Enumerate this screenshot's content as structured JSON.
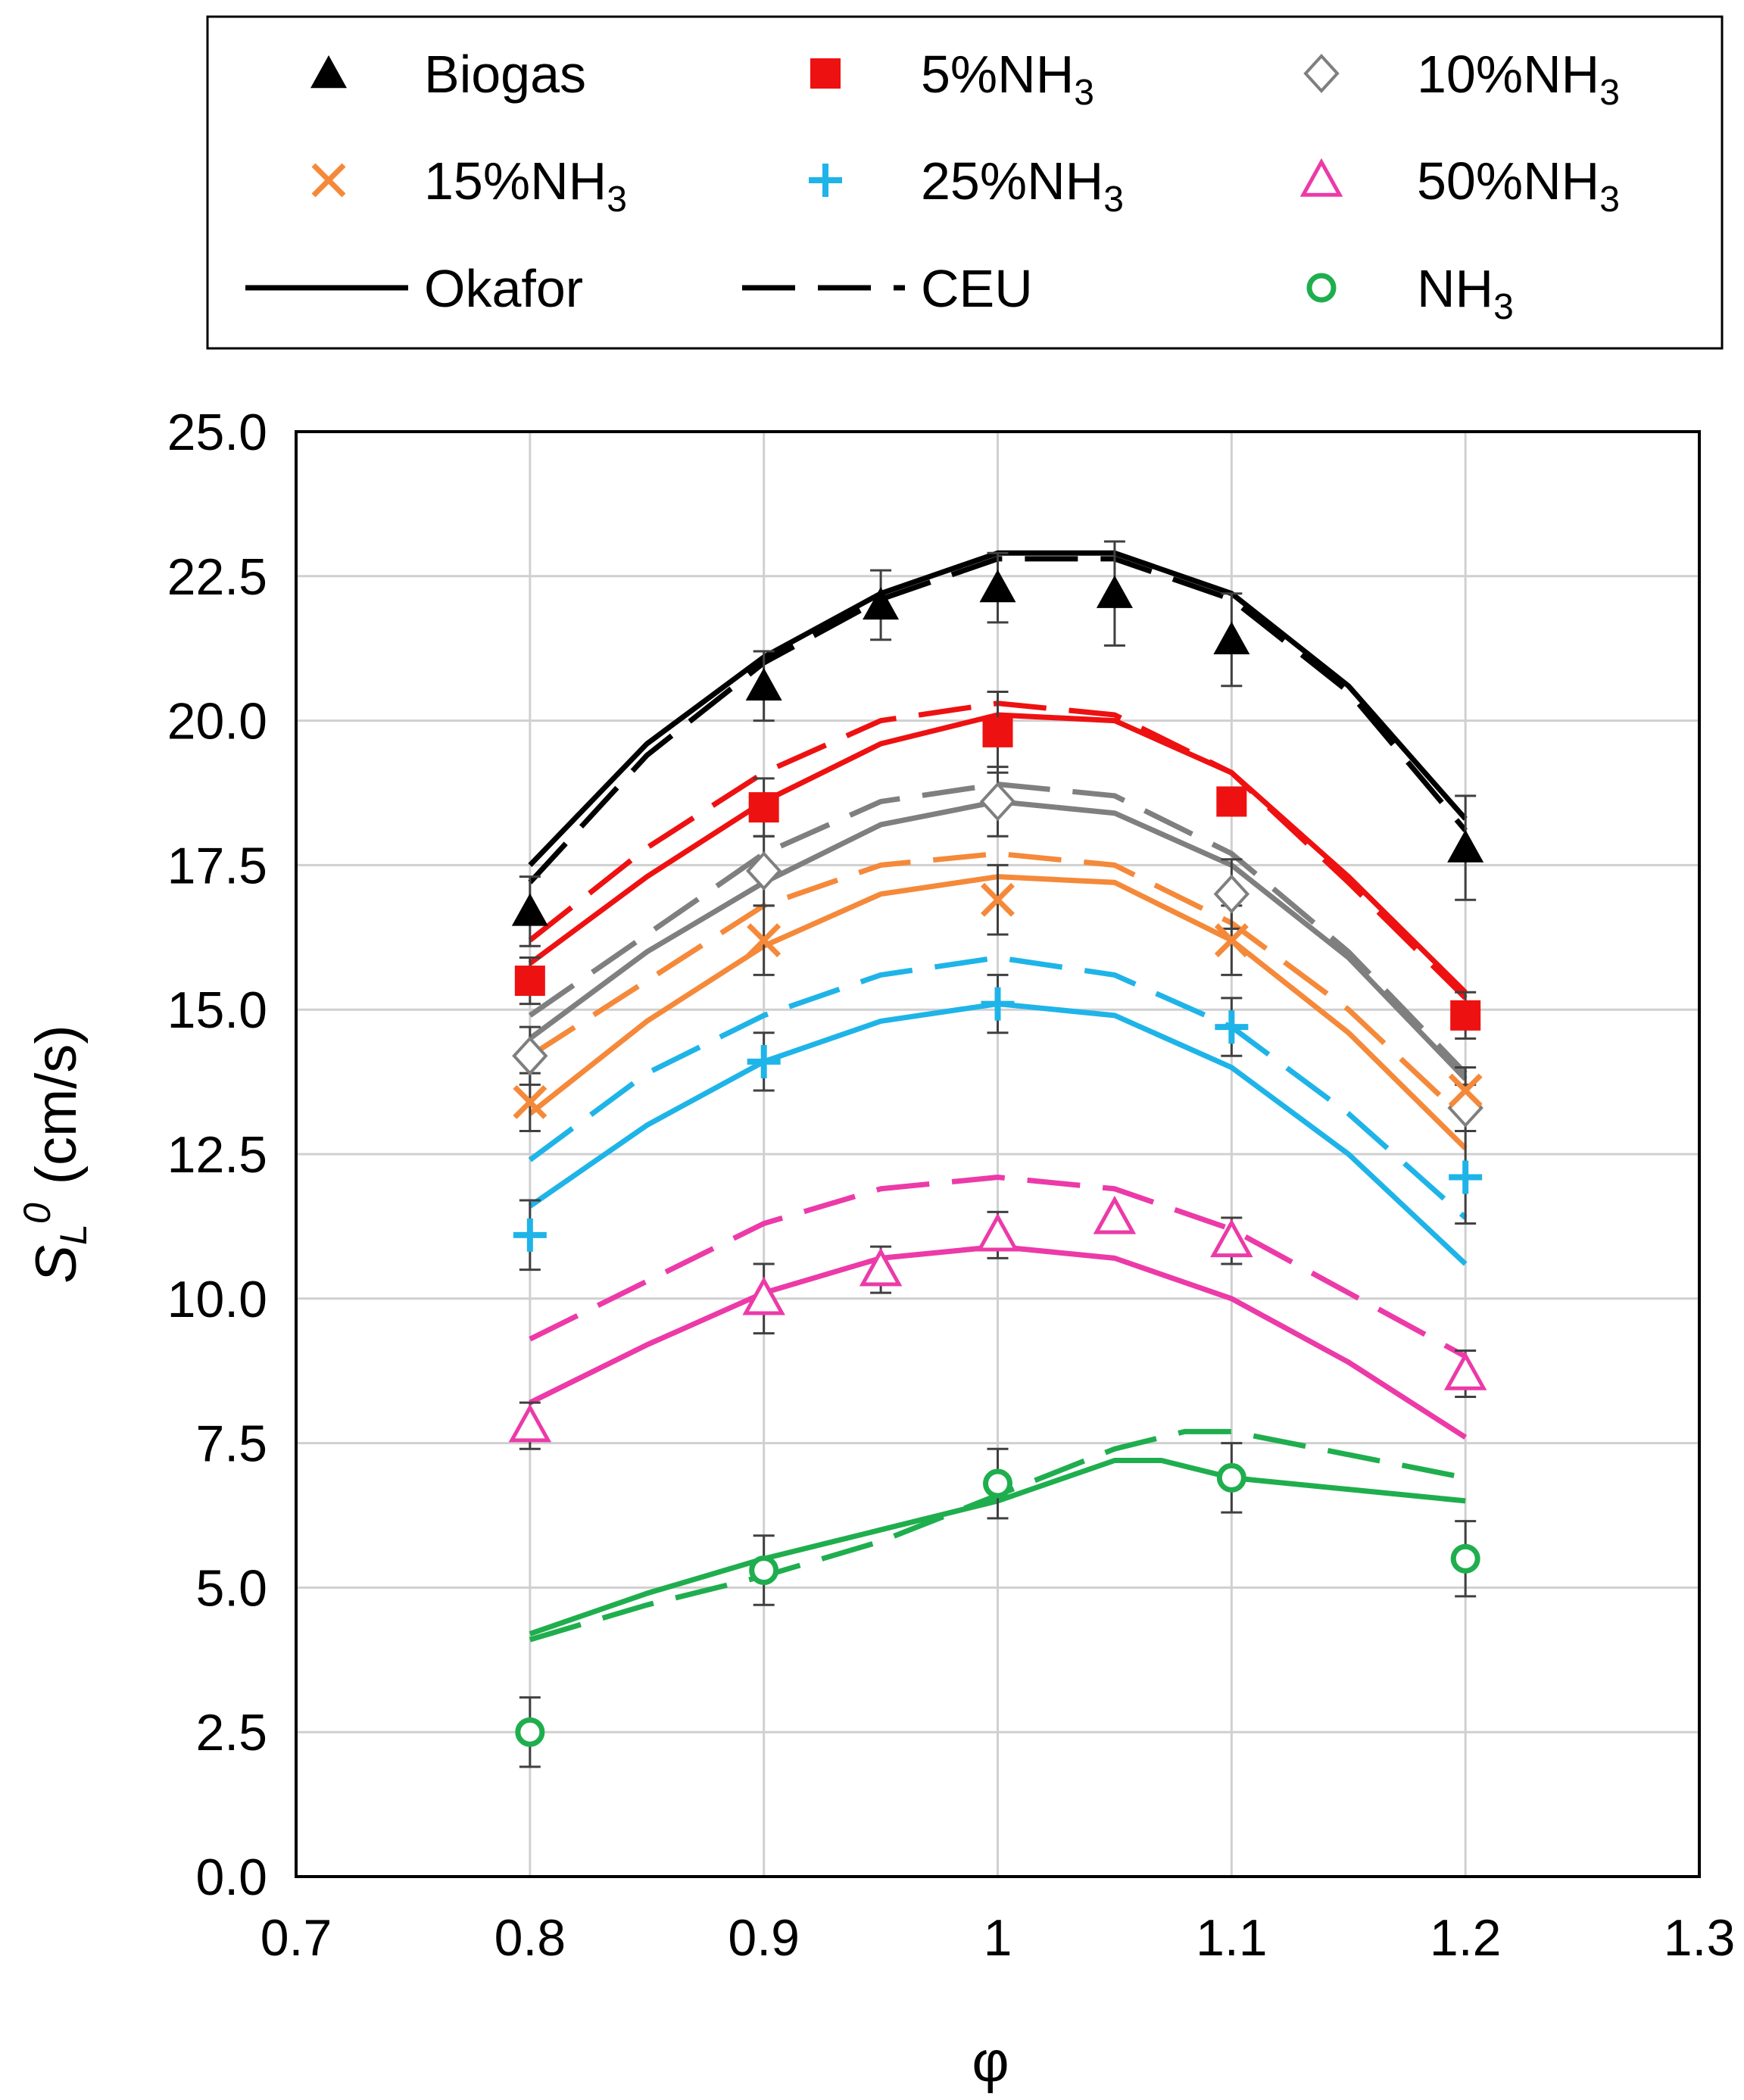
{
  "chart_data": {
    "type": "scatter",
    "title": "",
    "xlabel": "φ",
    "ylabel": "S_L^0 (cm/s)",
    "ylabel_main": "S",
    "ylabel_sub": "L",
    "ylabel_sup": "0",
    "ylabel_unit": "(cm/s)",
    "xlim": [
      0.7,
      1.3
    ],
    "ylim": [
      0,
      25
    ],
    "grid": true,
    "x_ticks": [
      0.7,
      0.8,
      0.9,
      1.0,
      1.1,
      1.2,
      1.3
    ],
    "x_tick_labels": [
      "0.7",
      "0.8",
      "0.9",
      "1",
      "1.1",
      "1.2",
      "1.3"
    ],
    "y_ticks": [
      0,
      2.5,
      5,
      7.5,
      10,
      12.5,
      15,
      17.5,
      20,
      22.5,
      25
    ],
    "y_tick_labels": [
      "0.0",
      "2.5",
      "5.0",
      "7.5",
      "10.0",
      "12.5",
      "15.0",
      "17.5",
      "20.0",
      "22.5",
      "25.0"
    ],
    "legend_position": "top",
    "legend": [
      {
        "label": "Biogas",
        "sub": "",
        "marker": "triangle-filled",
        "color": "#000000"
      },
      {
        "label": "5%NH",
        "sub": "3",
        "marker": "square-filled",
        "color": "#ee1111"
      },
      {
        "label": "10%NH",
        "sub": "3",
        "marker": "diamond-open",
        "color": "#7f7f7f"
      },
      {
        "label": "15%NH",
        "sub": "3",
        "marker": "x",
        "color": "#f5893a"
      },
      {
        "label": "25%NH",
        "sub": "3",
        "marker": "plus",
        "color": "#1fb4e8"
      },
      {
        "label": "50%NH",
        "sub": "3",
        "marker": "triangle-open",
        "color": "#ec3aa8"
      },
      {
        "label": "Okafor",
        "sub": "",
        "marker": "solid-line",
        "color": "#000000"
      },
      {
        "label": "CEU",
        "sub": "",
        "marker": "dashed-line",
        "color": "#000000"
      },
      {
        "label": "NH",
        "sub": "3",
        "marker": "circle-open",
        "color": "#1fae4e"
      }
    ],
    "series": [
      {
        "name": "Biogas",
        "color": "#000000",
        "marker": "triangle-filled",
        "points": [
          {
            "x": 0.8,
            "y": 16.7,
            "err": 0.6
          },
          {
            "x": 0.9,
            "y": 20.6,
            "err": 0.6
          },
          {
            "x": 0.95,
            "y": 22.0,
            "err": 0.6
          },
          {
            "x": 1.0,
            "y": 22.3,
            "err": 0.6
          },
          {
            "x": 1.05,
            "y": 22.2,
            "err": 0.9
          },
          {
            "x": 1.1,
            "y": 21.4,
            "err": 0.8
          },
          {
            "x": 1.2,
            "y": 17.8,
            "err": 0.9
          }
        ],
        "okafor": [
          [
            0.8,
            17.5
          ],
          [
            0.85,
            19.6
          ],
          [
            0.9,
            21.1
          ],
          [
            0.95,
            22.2
          ],
          [
            1.0,
            22.9
          ],
          [
            1.05,
            22.9
          ],
          [
            1.1,
            22.2
          ],
          [
            1.15,
            20.6
          ],
          [
            1.2,
            18.3
          ]
        ],
        "ceu": [
          [
            0.8,
            17.2
          ],
          [
            0.85,
            19.4
          ],
          [
            0.9,
            21.0
          ],
          [
            0.95,
            22.1
          ],
          [
            1.0,
            22.8
          ],
          [
            1.05,
            22.8
          ],
          [
            1.1,
            22.1
          ],
          [
            1.15,
            20.5
          ],
          [
            1.2,
            18.1
          ]
        ]
      },
      {
        "name": "5%NH3",
        "color": "#ee1111",
        "marker": "square-filled",
        "points": [
          {
            "x": 0.8,
            "y": 15.5,
            "err": 0.4
          },
          {
            "x": 0.9,
            "y": 18.5,
            "err": 0.5
          },
          {
            "x": 1.0,
            "y": 19.8,
            "err": 0.7
          },
          {
            "x": 1.1,
            "y": 18.6,
            "err": 0.0
          },
          {
            "x": 1.2,
            "y": 14.9,
            "err": 0.4
          }
        ],
        "okafor": [
          [
            0.8,
            15.8
          ],
          [
            0.85,
            17.3
          ],
          [
            0.9,
            18.6
          ],
          [
            0.95,
            19.6
          ],
          [
            1.0,
            20.1
          ],
          [
            1.05,
            20.0
          ],
          [
            1.1,
            19.1
          ],
          [
            1.15,
            17.3
          ],
          [
            1.2,
            15.3
          ]
        ],
        "ceu": [
          [
            0.8,
            16.2
          ],
          [
            0.85,
            17.8
          ],
          [
            0.9,
            19.1
          ],
          [
            0.95,
            20.0
          ],
          [
            1.0,
            20.3
          ],
          [
            1.05,
            20.1
          ],
          [
            1.1,
            19.1
          ],
          [
            1.15,
            17.2
          ],
          [
            1.2,
            15.2
          ]
        ]
      },
      {
        "name": "10%NH3",
        "color": "#7f7f7f",
        "marker": "diamond-open",
        "points": [
          {
            "x": 0.8,
            "y": 14.2,
            "err": 0.5
          },
          {
            "x": 0.9,
            "y": 17.4,
            "err": 0.6
          },
          {
            "x": 1.0,
            "y": 18.6,
            "err": 0.6
          },
          {
            "x": 1.1,
            "y": 17.0,
            "err": 0.6
          },
          {
            "x": 1.2,
            "y": 13.3,
            "err": 0.4
          }
        ],
        "okafor": [
          [
            0.8,
            14.5
          ],
          [
            0.85,
            16.0
          ],
          [
            0.9,
            17.2
          ],
          [
            0.95,
            18.2
          ],
          [
            1.0,
            18.6
          ],
          [
            1.05,
            18.4
          ],
          [
            1.1,
            17.5
          ],
          [
            1.15,
            15.9
          ],
          [
            1.2,
            13.8
          ]
        ],
        "ceu": [
          [
            0.8,
            14.9
          ],
          [
            0.85,
            16.3
          ],
          [
            0.9,
            17.7
          ],
          [
            0.95,
            18.6
          ],
          [
            1.0,
            18.9
          ],
          [
            1.05,
            18.7
          ],
          [
            1.1,
            17.7
          ],
          [
            1.15,
            16.0
          ],
          [
            1.2,
            13.9
          ]
        ]
      },
      {
        "name": "15%NH3",
        "color": "#f5893a",
        "marker": "x",
        "points": [
          {
            "x": 0.8,
            "y": 13.4,
            "err": 0.5
          },
          {
            "x": 0.9,
            "y": 16.2,
            "err": 0.6
          },
          {
            "x": 1.0,
            "y": 16.9,
            "err": 0.6
          },
          {
            "x": 1.1,
            "y": 16.2,
            "err": 0.6
          },
          {
            "x": 1.2,
            "y": 13.6,
            "err": 0.4
          }
        ],
        "okafor": [
          [
            0.8,
            13.2
          ],
          [
            0.85,
            14.8
          ],
          [
            0.9,
            16.1
          ],
          [
            0.95,
            17.0
          ],
          [
            1.0,
            17.3
          ],
          [
            1.05,
            17.2
          ],
          [
            1.1,
            16.2
          ],
          [
            1.15,
            14.6
          ],
          [
            1.2,
            12.6
          ]
        ],
        "ceu": [
          [
            0.8,
            14.2
          ],
          [
            0.85,
            15.5
          ],
          [
            0.9,
            16.8
          ],
          [
            0.95,
            17.5
          ],
          [
            1.0,
            17.7
          ],
          [
            1.05,
            17.5
          ],
          [
            1.1,
            16.5
          ],
          [
            1.15,
            15.0
          ],
          [
            1.2,
            13.1
          ]
        ]
      },
      {
        "name": "25%NH3",
        "color": "#1fb4e8",
        "marker": "plus",
        "points": [
          {
            "x": 0.8,
            "y": 11.1,
            "err": 0.6
          },
          {
            "x": 0.9,
            "y": 14.1,
            "err": 0.5
          },
          {
            "x": 1.0,
            "y": 15.1,
            "err": 0.5
          },
          {
            "x": 1.1,
            "y": 14.7,
            "err": 0.5
          },
          {
            "x": 1.2,
            "y": 12.1,
            "err": 0.8
          }
        ],
        "okafor": [
          [
            0.8,
            11.6
          ],
          [
            0.85,
            13.0
          ],
          [
            0.9,
            14.1
          ],
          [
            0.95,
            14.8
          ],
          [
            1.0,
            15.1
          ],
          [
            1.05,
            14.9
          ],
          [
            1.1,
            14.0
          ],
          [
            1.15,
            12.5
          ],
          [
            1.2,
            10.6
          ]
        ],
        "ceu": [
          [
            0.8,
            12.4
          ],
          [
            0.85,
            13.9
          ],
          [
            0.9,
            14.9
          ],
          [
            0.95,
            15.6
          ],
          [
            1.0,
            15.9
          ],
          [
            1.05,
            15.6
          ],
          [
            1.1,
            14.7
          ],
          [
            1.15,
            13.2
          ],
          [
            1.2,
            11.4
          ]
        ]
      },
      {
        "name": "50%NH3",
        "color": "#ec3aa8",
        "marker": "triangle-open",
        "points": [
          {
            "x": 0.8,
            "y": 7.8,
            "err": 0.4
          },
          {
            "x": 0.9,
            "y": 10.0,
            "err": 0.6
          },
          {
            "x": 0.95,
            "y": 10.5,
            "err": 0.4
          },
          {
            "x": 1.0,
            "y": 11.1,
            "err": 0.4
          },
          {
            "x": 1.05,
            "y": 11.4,
            "err": 0.0
          },
          {
            "x": 1.1,
            "y": 11.0,
            "err": 0.4
          },
          {
            "x": 1.2,
            "y": 8.7,
            "err": 0.4
          }
        ],
        "okafor": [
          [
            0.8,
            8.2
          ],
          [
            0.85,
            9.2
          ],
          [
            0.9,
            10.1
          ],
          [
            0.95,
            10.7
          ],
          [
            1.0,
            10.9
          ],
          [
            1.05,
            10.7
          ],
          [
            1.1,
            10.0
          ],
          [
            1.15,
            8.9
          ],
          [
            1.2,
            7.6
          ]
        ],
        "ceu": [
          [
            0.8,
            9.3
          ],
          [
            0.85,
            10.3
          ],
          [
            0.9,
            11.3
          ],
          [
            0.95,
            11.9
          ],
          [
            1.0,
            12.1
          ],
          [
            1.05,
            11.9
          ],
          [
            1.1,
            11.2
          ],
          [
            1.15,
            10.1
          ],
          [
            1.2,
            9.0
          ]
        ]
      },
      {
        "name": "NH3",
        "color": "#1fae4e",
        "marker": "circle-open",
        "points": [
          {
            "x": 0.8,
            "y": 2.5,
            "err": 0.6
          },
          {
            "x": 0.9,
            "y": 5.3,
            "err": 0.6
          },
          {
            "x": 1.0,
            "y": 6.8,
            "err": 0.6
          },
          {
            "x": 1.1,
            "y": 6.9,
            "err": 0.6
          },
          {
            "x": 1.2,
            "y": 5.5,
            "err": 0.65
          }
        ],
        "okafor": [
          [
            0.8,
            4.2
          ],
          [
            0.85,
            4.9
          ],
          [
            0.9,
            5.5
          ],
          [
            0.95,
            6.0
          ],
          [
            1.0,
            6.5
          ],
          [
            1.05,
            7.2
          ],
          [
            1.07,
            7.2
          ],
          [
            1.1,
            6.9
          ],
          [
            1.15,
            6.7
          ],
          [
            1.2,
            6.5
          ]
        ],
        "ceu": [
          [
            0.8,
            4.1
          ],
          [
            0.85,
            4.7
          ],
          [
            0.9,
            5.2
          ],
          [
            0.95,
            5.8
          ],
          [
            1.0,
            6.6
          ],
          [
            1.05,
            7.4
          ],
          [
            1.08,
            7.7
          ],
          [
            1.1,
            7.7
          ],
          [
            1.15,
            7.3
          ],
          [
            1.2,
            6.9
          ]
        ]
      }
    ]
  }
}
